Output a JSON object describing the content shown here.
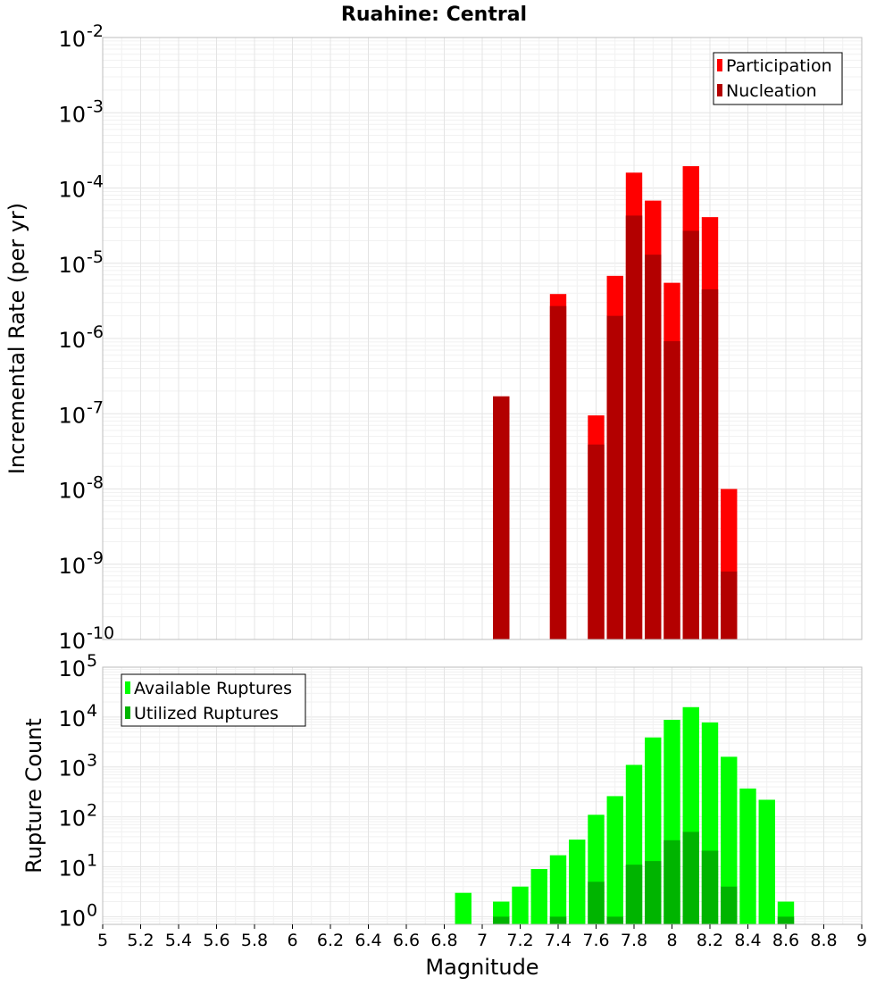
{
  "chart_data": [
    {
      "type": "bar",
      "title": "Ruahine: Central",
      "xlabel": "",
      "ylabel": "Incremental Rate (per yr)",
      "yscale": "log",
      "xlim": [
        5,
        9
      ],
      "ylim": [
        1e-10,
        0.01
      ],
      "ytick_exponents": [
        "-2",
        "-3",
        "-4",
        "-5",
        "-6",
        "-7",
        "-8",
        "-9",
        "-10"
      ],
      "ytick_base": "10",
      "legend": {
        "position": "top-right",
        "entries": [
          {
            "name": "Participation",
            "color": "#ff0000"
          },
          {
            "name": "Nucleation",
            "color": "#b30000"
          }
        ]
      },
      "series": [
        {
          "name": "Participation",
          "color": "#ff0000",
          "x": [
            7.1,
            7.4,
            7.6,
            7.7,
            7.8,
            7.9,
            8.0,
            8.1,
            8.2,
            8.3
          ],
          "values": [
            1.7e-07,
            3.9e-06,
            9.5e-08,
            6.8e-06,
            0.00016,
            6.8e-05,
            5.5e-06,
            0.000195,
            4.1e-05,
            1e-08
          ]
        },
        {
          "name": "Nucleation",
          "color": "#b30000",
          "x": [
            7.1,
            7.4,
            7.6,
            7.7,
            7.8,
            7.9,
            8.0,
            8.1,
            8.2,
            8.3
          ],
          "values": [
            1.7e-07,
            2.7e-06,
            3.9e-08,
            2e-06,
            4.3e-05,
            1.3e-05,
            9.2e-07,
            2.7e-05,
            4.5e-06,
            8e-10
          ]
        }
      ]
    },
    {
      "type": "bar",
      "title": "",
      "xlabel": "Magnitude",
      "ylabel": "Rupture Count",
      "yscale": "log",
      "xlim": [
        5,
        9
      ],
      "ylim": [
        0.7,
        100000.0
      ],
      "ytick_exponents": [
        "5",
        "4",
        "3",
        "2",
        "1",
        "0"
      ],
      "ytick_base": "10",
      "xticks": [
        "5",
        "5.2",
        "5.4",
        "5.6",
        "5.8",
        "6",
        "6.2",
        "6.4",
        "6.6",
        "6.8",
        "7",
        "7.2",
        "7.4",
        "7.6",
        "7.8",
        "8",
        "8.2",
        "8.4",
        "8.6",
        "8.8",
        "9"
      ],
      "legend": {
        "position": "top-left",
        "entries": [
          {
            "name": "Available Ruptures",
            "color": "#00ff00"
          },
          {
            "name": "Utilized Ruptures",
            "color": "#00b400"
          }
        ]
      },
      "series": [
        {
          "name": "Available Ruptures",
          "color": "#00ff00",
          "x": [
            6.9,
            7.1,
            7.2,
            7.3,
            7.4,
            7.5,
            7.6,
            7.7,
            7.8,
            7.9,
            8.0,
            8.1,
            8.2,
            8.3,
            8.4,
            8.5,
            8.6
          ],
          "values": [
            3,
            2,
            4,
            9,
            17,
            35,
            110,
            260,
            1100,
            3900,
            8800,
            15800,
            7800,
            1600,
            370,
            220,
            2
          ]
        },
        {
          "name": "Utilized Ruptures",
          "color": "#00b400",
          "x": [
            7.1,
            7.4,
            7.6,
            7.7,
            7.8,
            7.9,
            8.0,
            8.1,
            8.2,
            8.3,
            8.6
          ],
          "values": [
            1,
            1,
            5,
            1,
            11,
            13,
            34,
            50,
            21,
            4,
            1
          ]
        }
      ]
    }
  ]
}
